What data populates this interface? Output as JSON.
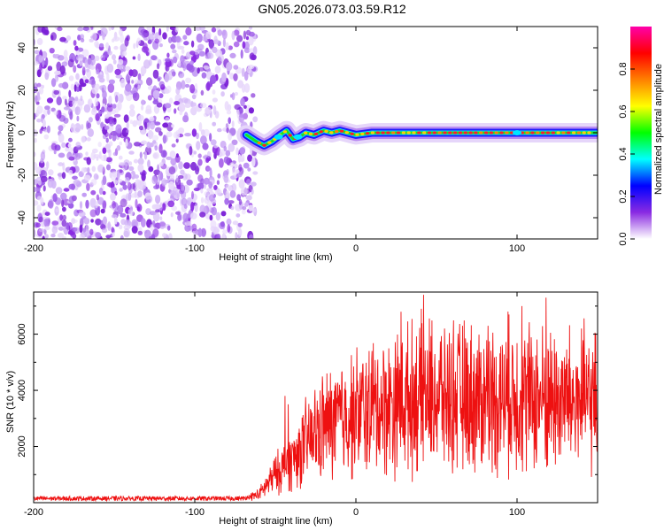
{
  "title": "GN05.2026.073.03.59.R12",
  "chart_data": [
    {
      "type": "heatmap",
      "xlabel": "Height of straight line (km)",
      "ylabel": "Frequency (Hz)",
      "xlim": [
        -200,
        150
      ],
      "ylim": [
        -50,
        50
      ],
      "xticks": [
        -200,
        -100,
        0,
        100
      ],
      "yticks": [
        -40,
        -20,
        0,
        20,
        40
      ],
      "noise_region_x": [
        -200,
        -62
      ],
      "tone_trace": [
        {
          "x": -68,
          "y": -1
        },
        {
          "x": -62,
          "y": -4
        },
        {
          "x": -57,
          "y": -6
        },
        {
          "x": -52,
          "y": -4
        },
        {
          "x": -47,
          "y": -1
        },
        {
          "x": -43,
          "y": 1
        },
        {
          "x": -39,
          "y": -3
        },
        {
          "x": -35,
          "y": -2
        },
        {
          "x": -31,
          "y": 0
        },
        {
          "x": -26,
          "y": -1
        },
        {
          "x": -20,
          "y": 1
        },
        {
          "x": -15,
          "y": 0
        },
        {
          "x": -10,
          "y": 1
        },
        {
          "x": -5,
          "y": 0
        },
        {
          "x": 0,
          "y": -1
        },
        {
          "x": 10,
          "y": 0
        },
        {
          "x": 150,
          "y": 0
        }
      ],
      "colorbar": {
        "label": "Normalized spectral amplitude",
        "ticks": [
          "0.0",
          "0.2",
          "0.4",
          "0.6",
          "0.8"
        ],
        "tick_values": [
          0,
          0.2,
          0.4,
          0.6,
          0.8
        ],
        "range": [
          0,
          1
        ],
        "colors": [
          "#ffffff",
          "#8a2be2",
          "#0000ff",
          "#00ffff",
          "#00ff00",
          "#ffff00",
          "#ff8000",
          "#ff0000",
          "#ff00aa"
        ]
      }
    },
    {
      "type": "line",
      "xlabel": "Height of straight line (km)",
      "ylabel": "SNR (10 * v/v)",
      "xlim": [
        -200,
        150
      ],
      "ylim": [
        0,
        7500
      ],
      "xticks": [
        -200,
        -100,
        0,
        100
      ],
      "yticks": [
        2000,
        4000,
        6000
      ],
      "line_color": "#ee1111",
      "envelope": [
        {
          "x": -200,
          "y": 150
        },
        {
          "x": -70,
          "y": 150
        },
        {
          "x": -60,
          "y": 300
        },
        {
          "x": -50,
          "y": 1000
        },
        {
          "x": -40,
          "y": 1500
        },
        {
          "x": -30,
          "y": 2200
        },
        {
          "x": -20,
          "y": 2700
        },
        {
          "x": -10,
          "y": 3000
        },
        {
          "x": 0,
          "y": 3200
        },
        {
          "x": 20,
          "y": 3500
        },
        {
          "x": 40,
          "y": 3800
        },
        {
          "x": 60,
          "y": 3800
        },
        {
          "x": 80,
          "y": 3700
        },
        {
          "x": 100,
          "y": 3800
        },
        {
          "x": 120,
          "y": 3700
        },
        {
          "x": 150,
          "y": 3600
        }
      ],
      "peaks": [
        {
          "x": -44,
          "y": 3800
        },
        {
          "x": -42,
          "y": 3500
        },
        {
          "x": -18,
          "y": 4600
        },
        {
          "x": 10,
          "y": 5400
        },
        {
          "x": 28,
          "y": 6800
        },
        {
          "x": 42,
          "y": 7400
        },
        {
          "x": 55,
          "y": 6200
        },
        {
          "x": 82,
          "y": 6300
        },
        {
          "x": 95,
          "y": 6700
        },
        {
          "x": 103,
          "y": 7000
        },
        {
          "x": 118,
          "y": 7300
        },
        {
          "x": 140,
          "y": 6200
        }
      ]
    }
  ]
}
